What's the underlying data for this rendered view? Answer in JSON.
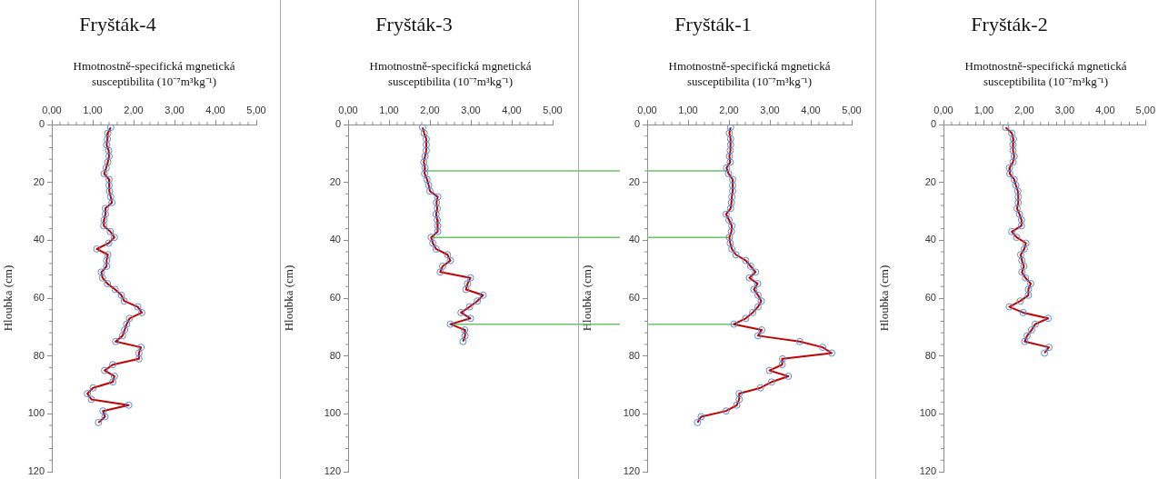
{
  "chart_data": [
    {
      "type": "line",
      "title": "Fryšták-4",
      "xlabel": "Hmotnostně-specifická mgnetická susceptibilita (10⁻⁷m³kg⁻¹)",
      "ylabel": "Hloubka (cm)",
      "orientation": "horizontal",
      "xlim": [
        0,
        5
      ],
      "xticks": [
        {
          "value": 0,
          "label": "0,00"
        },
        {
          "value": 1,
          "label": "1,00"
        },
        {
          "value": 2,
          "label": "2,00"
        },
        {
          "value": 3,
          "label": "3,00"
        },
        {
          "value": 4,
          "label": "4,00"
        },
        {
          "value": 5,
          "label": "5,00"
        }
      ],
      "ylim": [
        120,
        0
      ],
      "yticks": [
        0,
        20,
        40,
        60,
        80,
        100,
        120
      ],
      "grid": false,
      "legend": false,
      "marker": "circle",
      "series": [
        {
          "color": "#c00000",
          "x": [
            1,
            3,
            5,
            7,
            9,
            11,
            13,
            15,
            17,
            19,
            21,
            23,
            25,
            27,
            29,
            31,
            33,
            35,
            37,
            39,
            41,
            43,
            45,
            47,
            49,
            51,
            53,
            55,
            57,
            59,
            61,
            63,
            65,
            67,
            69,
            71,
            73,
            75,
            77,
            79,
            81,
            83,
            85,
            87,
            89,
            91,
            93,
            95,
            97,
            99,
            101,
            103
          ],
          "values": [
            1.44,
            1.37,
            1.36,
            1.34,
            1.39,
            1.4,
            1.37,
            1.33,
            1.28,
            1.4,
            1.4,
            1.41,
            1.44,
            1.47,
            1.31,
            1.31,
            1.28,
            1.27,
            1.43,
            1.53,
            1.39,
            1.1,
            1.37,
            1.34,
            1.34,
            1.21,
            1.24,
            1.36,
            1.55,
            1.7,
            1.77,
            2.1,
            2.2,
            1.9,
            1.83,
            1.78,
            1.73,
            1.56,
            2.18,
            2.13,
            2.13,
            1.49,
            1.29,
            1.53,
            1.49,
            1.01,
            0.87,
            0.97,
            1.88,
            1.25,
            1.3,
            1.14
          ]
        }
      ]
    },
    {
      "type": "line",
      "title": "Fryšták-3",
      "xlabel": "Hmotnostně-specifická mgnetická susceptibilita (10⁻⁷m³kg⁻¹)",
      "ylabel": "Hloubka (cm)",
      "orientation": "horizontal",
      "xlim": [
        0,
        5
      ],
      "xticks": [
        {
          "value": 0,
          "label": "0,00"
        },
        {
          "value": 1,
          "label": "1,00"
        },
        {
          "value": 2,
          "label": "2,00"
        },
        {
          "value": 3,
          "label": "3,00"
        },
        {
          "value": 4,
          "label": "4,00"
        },
        {
          "value": 5,
          "label": "5,00"
        }
      ],
      "ylim": [
        120,
        0
      ],
      "yticks": [
        0,
        20,
        40,
        60,
        80,
        100,
        120
      ],
      "grid": false,
      "legend": false,
      "marker": "circle",
      "series": [
        {
          "color": "#c00000",
          "x": [
            1,
            3,
            5,
            7,
            9,
            11,
            13,
            15,
            17,
            19,
            21,
            23,
            25,
            27,
            29,
            31,
            33,
            35,
            37,
            39,
            41,
            43,
            45,
            47,
            49,
            51,
            53,
            55,
            57,
            59,
            61,
            63,
            65,
            67,
            69,
            71,
            73,
            75
          ],
          "values": [
            1.82,
            1.86,
            1.91,
            1.91,
            1.91,
            1.88,
            1.85,
            1.88,
            1.87,
            1.93,
            1.97,
            2.0,
            2.19,
            2.16,
            2.18,
            2.15,
            2.18,
            2.19,
            2.19,
            2.03,
            2.07,
            2.15,
            2.43,
            2.5,
            2.31,
            2.25,
            2.99,
            2.92,
            2.88,
            3.3,
            3.16,
            2.97,
            2.76,
            2.99,
            2.5,
            2.85,
            2.86,
            2.81
          ]
        }
      ],
      "ref_lines": [
        {
          "axis": "y",
          "value": 16,
          "color": "#70c070"
        },
        {
          "axis": "y",
          "value": 39,
          "color": "#70c070"
        },
        {
          "axis": "y",
          "value": 69,
          "color": "#70c070"
        }
      ]
    },
    {
      "type": "line",
      "title": "Fryšták-1",
      "xlabel": "Hmotnostně-specifická mgnetická susceptibilita (10⁻⁷m³kg⁻¹)",
      "ylabel": "Hloubka (cm)",
      "orientation": "horizontal",
      "xlim": [
        0,
        5
      ],
      "xticks": [
        {
          "value": 0,
          "label": "0,00"
        },
        {
          "value": 1,
          "label": "1,00"
        },
        {
          "value": 2,
          "label": "2,00"
        },
        {
          "value": 3,
          "label": "3,00"
        },
        {
          "value": 4,
          "label": "4,00"
        },
        {
          "value": 5,
          "label": "5,00"
        }
      ],
      "ylim": [
        120,
        0
      ],
      "yticks": [
        0,
        20,
        40,
        60,
        80,
        100,
        120
      ],
      "grid": false,
      "legend": false,
      "marker": "circle",
      "series": [
        {
          "color": "#c00000",
          "x": [
            1,
            3,
            5,
            7,
            9,
            11,
            13,
            15,
            17,
            19,
            21,
            23,
            25,
            27,
            29,
            31,
            33,
            35,
            37,
            39,
            41,
            43,
            45,
            47,
            49,
            51,
            53,
            55,
            57,
            59,
            61,
            63,
            65,
            67,
            69,
            71,
            73,
            75,
            77,
            79,
            81,
            83,
            85,
            87,
            89,
            91,
            93,
            95,
            97,
            99,
            101,
            103
          ],
          "values": [
            2.04,
            2.01,
            2.04,
            2.04,
            2.03,
            2.01,
            2.03,
            1.94,
            1.99,
            2.09,
            2.09,
            2.09,
            2.07,
            2.06,
            2.04,
            1.93,
            2.0,
            2.07,
            2.06,
            2.01,
            2.03,
            2.07,
            2.17,
            2.41,
            2.53,
            2.65,
            2.5,
            2.7,
            2.61,
            2.71,
            2.79,
            2.71,
            2.58,
            2.41,
            2.12,
            2.8,
            2.71,
            3.73,
            4.29,
            4.51,
            3.31,
            3.3,
            2.99,
            3.45,
            3.04,
            2.77,
            2.25,
            2.25,
            2.19,
            1.93,
            1.32,
            1.23
          ]
        }
      ],
      "ref_lines": [
        {
          "axis": "y",
          "value": 16,
          "color": "#70c070"
        },
        {
          "axis": "y",
          "value": 39,
          "color": "#70c070"
        },
        {
          "axis": "y",
          "value": 69,
          "color": "#70c070"
        }
      ]
    },
    {
      "type": "line",
      "title": "Fryšták-2",
      "xlabel": "Hmotnostně-specifická mgnetická susceptibilita (10⁻⁷m³kg⁻¹)",
      "ylabel": "Hloubka (cm)",
      "orientation": "horizontal",
      "xlim": [
        0,
        5
      ],
      "xticks": [
        {
          "value": 0,
          "label": "0,00"
        },
        {
          "value": 1,
          "label": "1,00"
        },
        {
          "value": 2,
          "label": "2,00"
        },
        {
          "value": 3,
          "label": "3,00"
        },
        {
          "value": 4,
          "label": "4,00"
        },
        {
          "value": 5,
          "label": "5,00"
        }
      ],
      "ylim": [
        120,
        0
      ],
      "yticks": [
        0,
        20,
        40,
        60,
        80,
        100,
        120
      ],
      "grid": false,
      "legend": false,
      "marker": "circle",
      "series": [
        {
          "color": "#c00000",
          "x": [
            1,
            3,
            5,
            7,
            9,
            11,
            13,
            15,
            17,
            19,
            21,
            23,
            25,
            27,
            29,
            31,
            33,
            35,
            37,
            39,
            41,
            43,
            45,
            47,
            49,
            51,
            53,
            55,
            57,
            59,
            61,
            63,
            65,
            67,
            69,
            71,
            73,
            75,
            77,
            79
          ],
          "values": [
            1.54,
            1.69,
            1.73,
            1.72,
            1.72,
            1.75,
            1.72,
            1.63,
            1.64,
            1.75,
            1.79,
            1.84,
            1.85,
            1.85,
            1.82,
            1.88,
            1.93,
            1.93,
            1.69,
            1.81,
            2.04,
            2.0,
            1.91,
            1.94,
            1.99,
            1.94,
            2.03,
            2.16,
            2.1,
            2.1,
            1.9,
            1.63,
            1.97,
            2.59,
            2.27,
            2.18,
            2.07,
            2.01,
            2.61,
            2.5
          ]
        }
      ]
    }
  ]
}
